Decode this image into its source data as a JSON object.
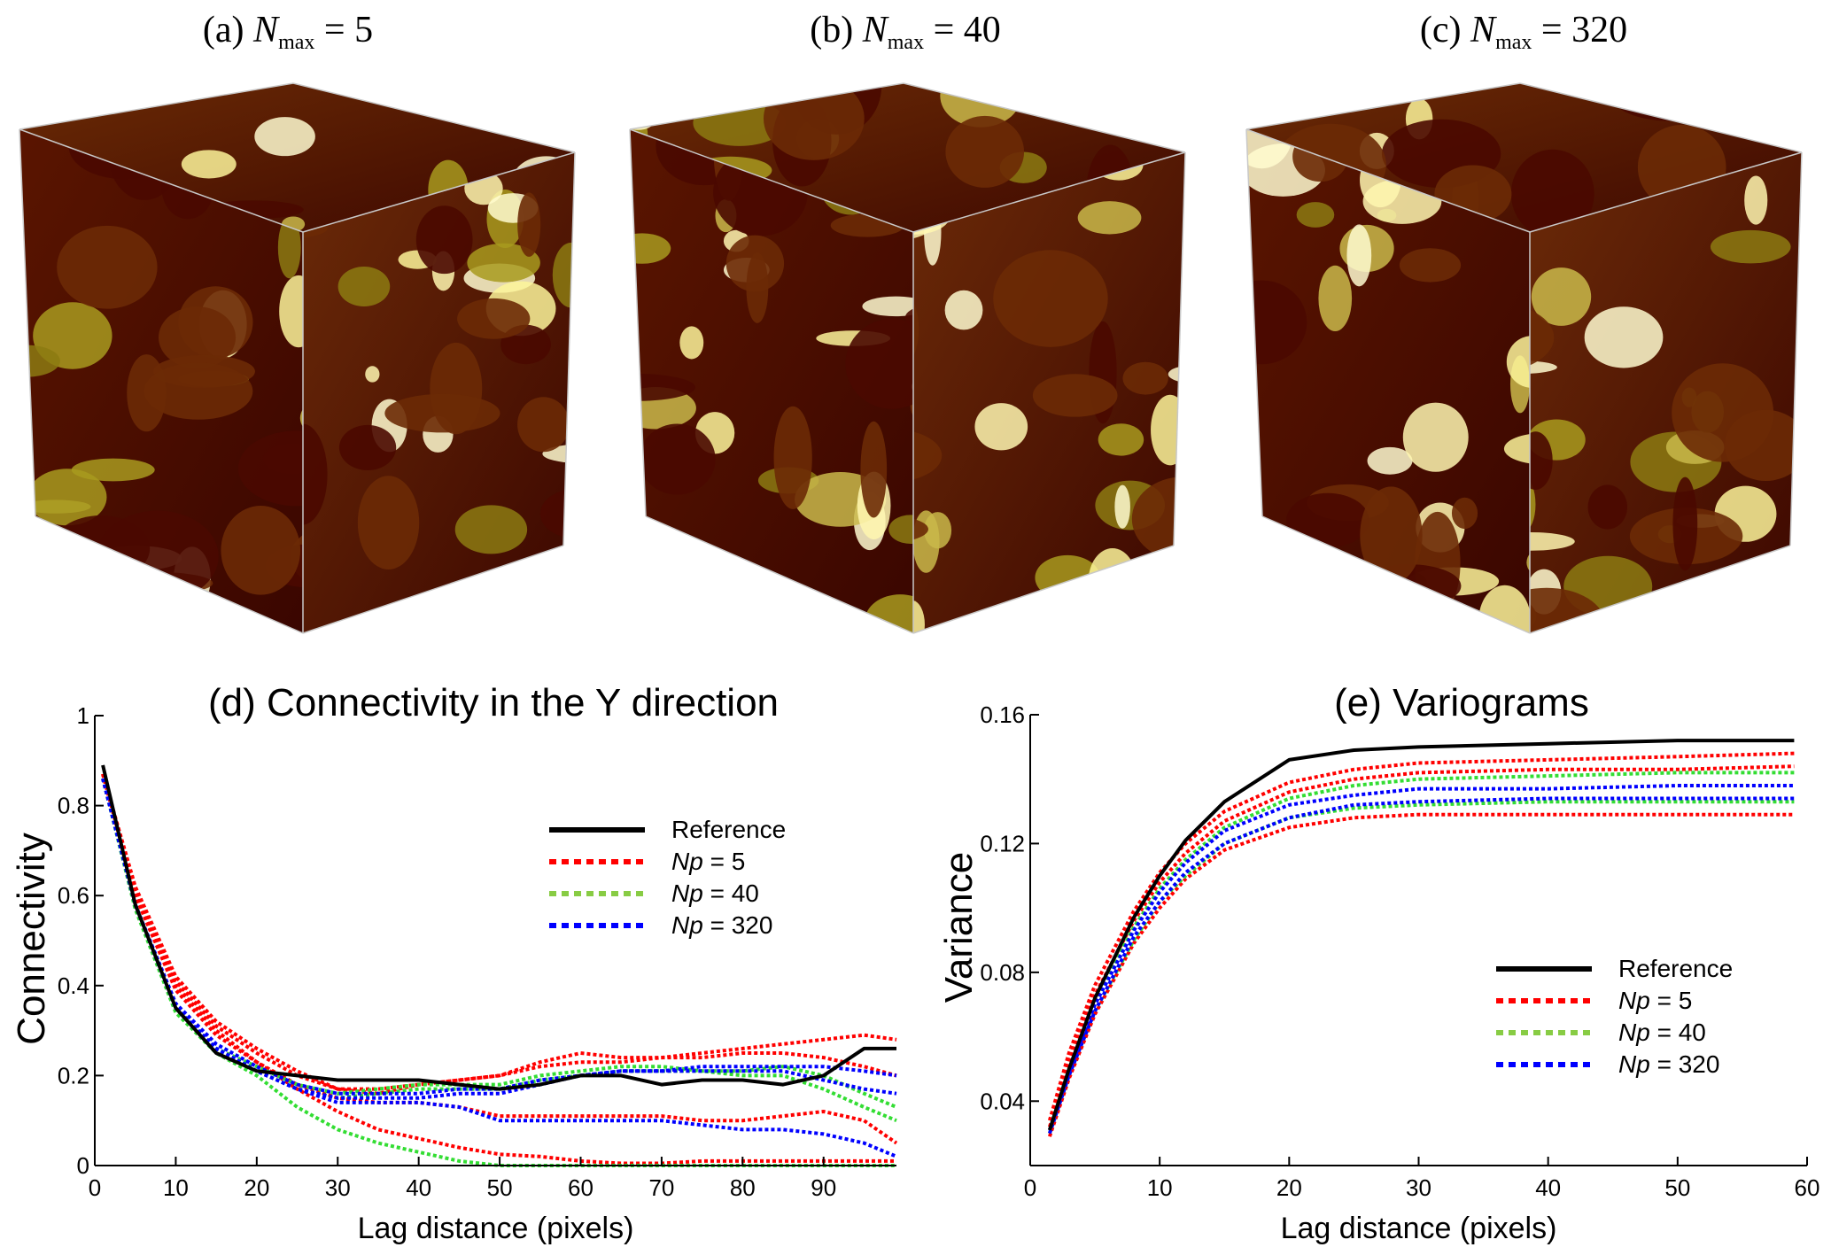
{
  "panels": [
    {
      "label": "(a)",
      "symbol": "N",
      "subscript": "max",
      "value": "= 5"
    },
    {
      "label": "(b)",
      "symbol": "N",
      "subscript": "max",
      "value": "= 40"
    },
    {
      "label": "(c)",
      "symbol": "N",
      "subscript": "max",
      "value": "= 320"
    }
  ],
  "colors": {
    "reference": "#000000",
    "np5": "#ff0000",
    "np40": "#33dd33",
    "np320": "#0000ff",
    "legend_np40": "#88cc44"
  },
  "chart_data": [
    {
      "type": "line",
      "title": "(d) Connectivity in the Y direction",
      "xlabel": "Lag distance (pixels)",
      "ylabel": "Connectivity",
      "xlim": [
        0,
        99
      ],
      "ylim": [
        0,
        1
      ],
      "xticks": [
        "0",
        "10",
        "20",
        "30",
        "40",
        "50",
        "60",
        "70",
        "80",
        "90"
      ],
      "yticks": [
        "0",
        "0.2",
        "0.4",
        "0.6",
        "0.8",
        "1"
      ],
      "legend": [
        "Reference",
        "Np = 5",
        "Np = 40",
        "Np = 320"
      ],
      "legend_placement": "upper-right",
      "x": [
        1,
        5,
        10,
        15,
        20,
        25,
        30,
        35,
        40,
        45,
        50,
        55,
        60,
        65,
        70,
        75,
        80,
        85,
        90,
        95,
        99
      ],
      "series": [
        {
          "name": "Np = 5",
          "group": "np5",
          "values": [
            0.87,
            0.62,
            0.42,
            0.32,
            0.26,
            0.21,
            0.17,
            0.16,
            0.18,
            0.19,
            0.2,
            0.23,
            0.25,
            0.24,
            0.24,
            0.25,
            0.26,
            0.27,
            0.28,
            0.29,
            0.28
          ]
        },
        {
          "name": "Np = 5",
          "group": "np5",
          "values": [
            0.87,
            0.61,
            0.41,
            0.31,
            0.25,
            0.2,
            0.17,
            0.17,
            0.18,
            0.19,
            0.2,
            0.22,
            0.23,
            0.23,
            0.24,
            0.24,
            0.25,
            0.25,
            0.24,
            0.22,
            0.2
          ]
        },
        {
          "name": "Np = 5",
          "group": "np5",
          "values": [
            0.87,
            0.6,
            0.4,
            0.3,
            0.23,
            0.18,
            0.15,
            0.14,
            0.14,
            0.13,
            0.11,
            0.11,
            0.11,
            0.11,
            0.11,
            0.1,
            0.1,
            0.11,
            0.12,
            0.1,
            0.05
          ]
        },
        {
          "name": "Np = 5",
          "group": "np5",
          "values": [
            0.87,
            0.6,
            0.39,
            0.29,
            0.23,
            0.17,
            0.12,
            0.08,
            0.06,
            0.04,
            0.025,
            0.02,
            0.01,
            0.005,
            0.005,
            0.01,
            0.01,
            0.01,
            0.01,
            0.01,
            0.01
          ]
        },
        {
          "name": "Np = 40",
          "group": "np40",
          "values": [
            0.86,
            0.57,
            0.34,
            0.25,
            0.2,
            0.13,
            0.08,
            0.05,
            0.03,
            0.01,
            0,
            0,
            0,
            0,
            0,
            0,
            0,
            0,
            0,
            0,
            0
          ]
        },
        {
          "name": "Np = 40",
          "group": "np40",
          "values": [
            0.86,
            0.58,
            0.35,
            0.26,
            0.22,
            0.18,
            0.16,
            0.17,
            0.18,
            0.18,
            0.18,
            0.2,
            0.21,
            0.22,
            0.22,
            0.21,
            0.21,
            0.22,
            0.2,
            0.16,
            0.13
          ]
        },
        {
          "name": "Np = 40",
          "group": "np40",
          "values": [
            0.86,
            0.58,
            0.35,
            0.26,
            0.21,
            0.17,
            0.15,
            0.16,
            0.17,
            0.17,
            0.17,
            0.19,
            0.2,
            0.21,
            0.21,
            0.21,
            0.2,
            0.2,
            0.17,
            0.13,
            0.1
          ]
        },
        {
          "name": "Np = 320",
          "group": "np320",
          "values": [
            0.86,
            0.58,
            0.35,
            0.26,
            0.21,
            0.17,
            0.15,
            0.15,
            0.15,
            0.16,
            0.16,
            0.18,
            0.2,
            0.21,
            0.21,
            0.21,
            0.21,
            0.21,
            0.19,
            0.17,
            0.16
          ]
        },
        {
          "name": "Np = 320",
          "group": "np320",
          "values": [
            0.86,
            0.58,
            0.35,
            0.26,
            0.21,
            0.17,
            0.14,
            0.14,
            0.14,
            0.13,
            0.1,
            0.1,
            0.1,
            0.1,
            0.1,
            0.09,
            0.08,
            0.08,
            0.07,
            0.05,
            0.02
          ]
        },
        {
          "name": "Np = 320",
          "group": "np320",
          "values": [
            0.86,
            0.58,
            0.36,
            0.27,
            0.22,
            0.18,
            0.16,
            0.16,
            0.16,
            0.17,
            0.17,
            0.19,
            0.2,
            0.21,
            0.21,
            0.22,
            0.22,
            0.22,
            0.22,
            0.21,
            0.2
          ]
        },
        {
          "name": "Reference",
          "group": "reference",
          "values": [
            0.89,
            0.58,
            0.35,
            0.25,
            0.21,
            0.2,
            0.19,
            0.19,
            0.19,
            0.18,
            0.17,
            0.18,
            0.2,
            0.2,
            0.18,
            0.19,
            0.19,
            0.18,
            0.2,
            0.26,
            0.26
          ]
        }
      ]
    },
    {
      "type": "line",
      "title": "(e) Variograms",
      "xlabel": "Lag distance (pixels)",
      "ylabel": "Variance",
      "xlim": [
        0,
        60
      ],
      "ylim": [
        0.02,
        0.16
      ],
      "xticks": [
        "0",
        "10",
        "20",
        "30",
        "40",
        "50",
        "60"
      ],
      "yticks": [
        "0.04",
        "0.08",
        "0.12",
        "0.16"
      ],
      "legend": [
        "Reference",
        "Np = 5",
        "Np = 40",
        "Np = 320"
      ],
      "legend_placement": "lower-right",
      "x": [
        1.5,
        3,
        5,
        8,
        10,
        12,
        15,
        20,
        25,
        30,
        40,
        50,
        59
      ],
      "series": [
        {
          "name": "Np = 5",
          "group": "np5",
          "values": [
            0.034,
            0.055,
            0.076,
            0.099,
            0.111,
            0.12,
            0.13,
            0.139,
            0.143,
            0.145,
            0.146,
            0.147,
            0.148
          ]
        },
        {
          "name": "Np = 5",
          "group": "np5",
          "values": [
            0.032,
            0.052,
            0.073,
            0.096,
            0.108,
            0.117,
            0.127,
            0.136,
            0.14,
            0.142,
            0.143,
            0.143,
            0.144
          ]
        },
        {
          "name": "Np = 5",
          "group": "np5",
          "values": [
            0.029,
            0.047,
            0.067,
            0.089,
            0.1,
            0.109,
            0.118,
            0.125,
            0.128,
            0.129,
            0.129,
            0.129,
            0.129
          ]
        },
        {
          "name": "Np = 40",
          "group": "np40",
          "values": [
            0.031,
            0.05,
            0.071,
            0.094,
            0.106,
            0.115,
            0.125,
            0.134,
            0.138,
            0.14,
            0.141,
            0.142,
            0.142
          ]
        },
        {
          "name": "Np = 40",
          "group": "np40",
          "values": [
            0.03,
            0.048,
            0.068,
            0.09,
            0.102,
            0.11,
            0.12,
            0.128,
            0.131,
            0.132,
            0.133,
            0.133,
            0.133
          ]
        },
        {
          "name": "Np = 320",
          "group": "np320",
          "values": [
            0.031,
            0.049,
            0.07,
            0.093,
            0.105,
            0.114,
            0.124,
            0.132,
            0.135,
            0.137,
            0.137,
            0.138,
            0.138
          ]
        },
        {
          "name": "Np = 320",
          "group": "np320",
          "values": [
            0.03,
            0.048,
            0.068,
            0.091,
            0.102,
            0.111,
            0.12,
            0.128,
            0.132,
            0.133,
            0.134,
            0.134,
            0.134
          ]
        },
        {
          "name": "Reference",
          "group": "reference",
          "values": [
            0.031,
            0.05,
            0.072,
            0.097,
            0.11,
            0.121,
            0.133,
            0.146,
            0.149,
            0.15,
            0.151,
            0.152,
            0.152
          ]
        }
      ]
    }
  ]
}
